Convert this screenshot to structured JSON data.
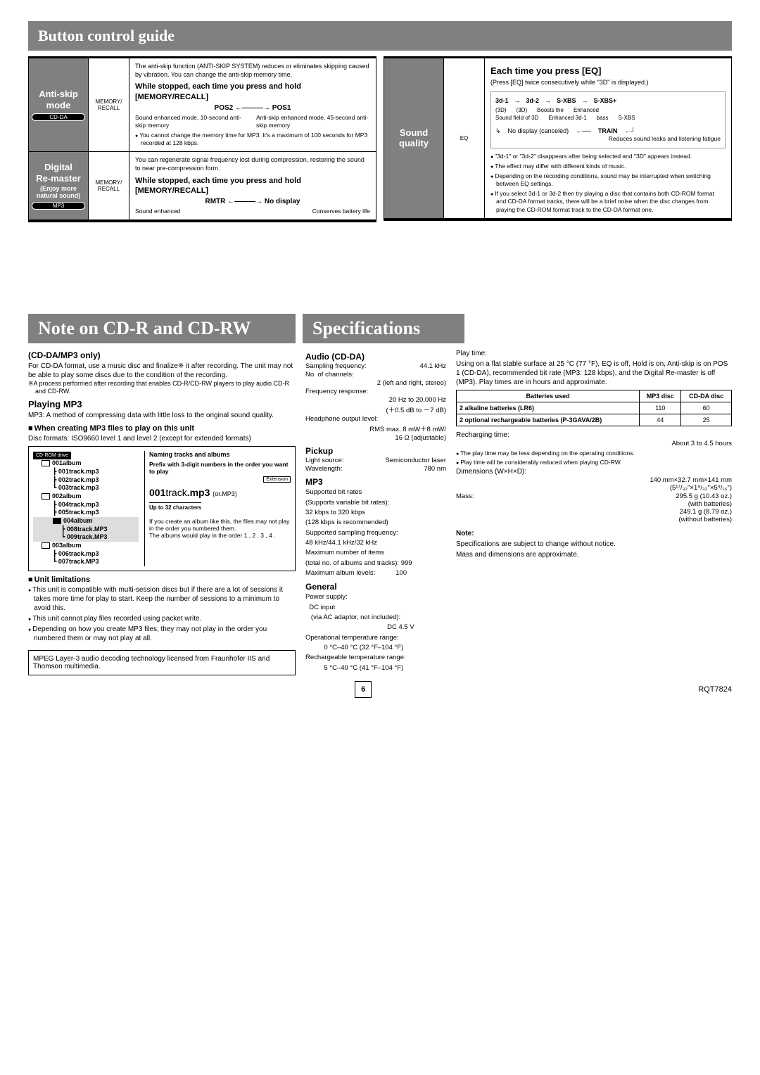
{
  "banner_top": "Button control guide",
  "table1": {
    "rows": [
      {
        "title_lines": [
          "Anti-skip",
          "mode"
        ],
        "pill": "CD-DA",
        "button": "MEMORY/\nRECALL",
        "intro": "The anti-skip function (ANTI-SKIP SYSTEM) reduces or eliminates skipping caused by vibration. You can change the anti-skip memory time.",
        "bold": "While stopped, each time you press and hold [MEMORY/RECALL]",
        "diagram": "POS2 ←———→ POS1",
        "diag_left": "Sound enhanced mode, 10-second anti-skip memory",
        "diag_right": "Anti-skip enhanced mode, 45-second anti-skip memory",
        "note": "You cannot change the memory time for MP3. It's a maximum of 100 seconds for MP3 recorded at 128 kbps."
      },
      {
        "title_lines": [
          "Digital",
          "Re-master"
        ],
        "subtitle": "(Enjoy more natural sound)",
        "pill": "MP3",
        "button": "MEMORY/\nRECALL",
        "intro": "You can regenerate signal frequency lost during compression, restoring the sound to near pre-compression form.",
        "bold": "While stopped, each time you press and hold [MEMORY/RECALL]",
        "diagram": "RMTR ←———→ No display",
        "diag_left": "Sound enhanced",
        "diag_right": "Conserves battery life"
      }
    ]
  },
  "table2": {
    "title_lines": [
      "Sound",
      "quality"
    ],
    "button": "EQ",
    "eq_title": "Each time you press [EQ]",
    "eq_sub": "(Press [EQ] twice consecutively while \"3D\" is displayed.)",
    "eq_seq": [
      "3d-1",
      "3d-2",
      "S-XBS",
      "S-XBS+"
    ],
    "eq_seq_labels": [
      "(3D)",
      "(3D)",
      "Boosts the",
      "Enhanced"
    ],
    "eq_seq_labels2": [
      "Sound field of 3D",
      "Enhanced 3d-1",
      "bass",
      "S-XBS"
    ],
    "eq_train": "TRAIN",
    "eq_train_desc": "Reduces sound leaks and listening fatigue",
    "eq_nodisplay": "No display (canceled)",
    "bullets": [
      "\"3d-1\" or \"3d-2\" disappears after being selected and \"3D\" appears instead.",
      "The effect may differ with different kinds of music.",
      "Depending on the recording conditions, sound may be interrupted when switching between EQ settings.",
      "If you select 3d-1 or 3d-2 then try playing a disc that contains both CD-ROM format and CD-DA format tracks, there will be a brief noise when the disc changes from playing the CD-ROM format track to the CD-DA format one."
    ]
  },
  "big1": "Note on CD-R and CD-RW",
  "big2": "Specifications",
  "left": {
    "cdda_h": "(CD-DA/MP3 only)",
    "cdda_p": "For CD-DA format, use a music disc and finalize※ it after recording. The unit may not be able to play some discs due to the condition of the recording.",
    "cdda_star": "※A process performed after recording that enables CD-R/CD-RW players to play audio CD-R and CD-RW.",
    "play_h": "Playing MP3",
    "play_p": "MP3: A method of compressing data with little loss to the original sound quality.",
    "create_h": "When creating MP3 files to play on this unit",
    "create_p": "Disc formats: ISO9660 level 1 and level 2 (except for extended formats)",
    "tree": {
      "drive": "CD-ROM drive",
      "albums": [
        {
          "name": "001album",
          "tracks": [
            "001track.mp3",
            "002track.mp3",
            "003track.mp3"
          ]
        },
        {
          "name": "002album",
          "tracks": [
            "004track.mp3",
            "005track.mp3"
          ],
          "sub": {
            "name": "004album",
            "tracks": [
              "008track.MP3",
              "009track.MP3"
            ]
          }
        },
        {
          "name": "003album",
          "tracks": [
            "006track.mp3",
            "007track.MP3"
          ]
        }
      ],
      "naming_h": "Naming tracks and albums",
      "prefix_note": "Prefix with 3-digit numbers in the order you want to play",
      "ext_label": "Extension",
      "example_num": "001",
      "example_track": "track",
      "example_ext": ".mp3",
      "example_or": "(or.MP3)",
      "under": "Up to 32 characters",
      "order_note": "If you create an album like this, the files may not play in the order you numbered them.\nThe albums would play in the order 1 , 2 , 3 , 4 ."
    },
    "unit_h": "Unit limitations",
    "unit_bullets": [
      "This unit is compatible with multi-session discs but if there are a lot of sessions it takes more time for play to start. Keep the number of sessions to a minimum to avoid this.",
      "This unit cannot play files recorded using packet write.",
      "Depending on how you create MP3 files, they may not play in the order you numbered them or may not play at all."
    ],
    "license": "MPEG Layer-3 audio decoding technology licensed from Fraunhofer IIS and Thomson multimedia."
  },
  "specs": {
    "audio_h": "Audio (CD-DA)",
    "audio": [
      [
        "Sampling frequency:",
        "44.1 kHz"
      ],
      [
        "No. of channels:",
        ""
      ],
      [
        "",
        "2 (left and right, stereo)"
      ],
      [
        "Frequency response:",
        ""
      ],
      [
        "",
        "20 Hz to 20,000 Hz"
      ],
      [
        "",
        "(＋0.5 dB to －7 dB)"
      ],
      [
        "Headphone output level:",
        ""
      ],
      [
        "",
        "RMS max. 8 mW＋8 mW/"
      ],
      [
        "",
        "16 Ω (adjustable)"
      ]
    ],
    "pickup_h": "Pickup",
    "pickup": [
      [
        "Light source:",
        "Semiconductor laser"
      ],
      [
        "Wavelength:",
        "780 nm"
      ]
    ],
    "mp3_h": "MP3",
    "mp3": [
      "Supported bit rates",
      "(Supports variable bit rates):",
      "32 kbps to 320 kbps",
      "(128 kbps is recommended)",
      "Supported sampling frequency:",
      "48 kHz/44.1 kHz/32 kHz",
      "Maximum number of items",
      "(total no. of albums and tracks): 999",
      "Maximum album levels:           100"
    ],
    "gen_h": "General",
    "gen": [
      "Power supply:",
      "  DC input",
      "   (via AC adaptor, not included):",
      "                                            DC 4.5 V",
      "Operational temperature range:",
      "          0 °C–40 °C (32 °F–104 °F)",
      "Rechargeable temperature range:",
      "          5 °C–40 °C (41 °F–104 °F)"
    ]
  },
  "right": {
    "playtime_h": "Play time:",
    "playtime_p": "Using on a flat stable surface at 25 °C (77 °F), EQ is off, Hold is on, Anti-skip is on POS 1 (CD-DA), recommended bit rate (MP3: 128 kbps), and the Digital Re-master is off (MP3). Play times are in hours and approximate.",
    "bat_table": {
      "headers": [
        "Batteries used",
        "MP3 disc",
        "CD-DA disc"
      ],
      "rows": [
        [
          "2 alkaline batteries (LR6)",
          "110",
          "60"
        ],
        [
          "2 optional rechargeable batteries (P-3GAVA/2B)",
          "44",
          "25"
        ]
      ]
    },
    "recharge_h": "Recharging time:",
    "recharge_v": "About 3 to 4.5 hours",
    "r_bullets": [
      "The play time may be less depending on the operating conditions.",
      "Play time will be considerably reduced when playing CD-RW."
    ],
    "dim_h": "Dimensions (W×H×D):",
    "dim_v1": "140 mm×32.7 mm×141 mm",
    "dim_v2": "(5¹⁷/₃₂″×1⁹/₃₂″×5⁹/₁₆″)",
    "mass_h": "Mass:",
    "mass_v1": "295.5 g (10.43 oz.)",
    "mass_v1b": "(with batteries)",
    "mass_v2": "249.1 g (8.79 oz.)",
    "mass_v2b": "(without batteries)",
    "note_h": "Note:",
    "note_p1": "Specifications are subject to change without notice.",
    "note_p2": "Mass and dimensions are approximate."
  },
  "page_num": "6",
  "doc_code": "RQT7824"
}
